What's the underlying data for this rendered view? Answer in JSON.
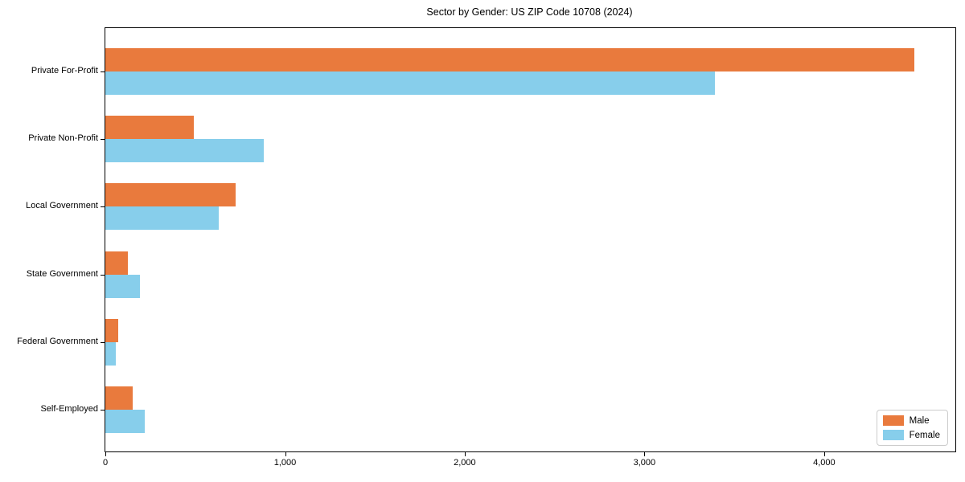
{
  "chart_data": {
    "type": "bar",
    "orientation": "horizontal",
    "title": "Sector by Gender: US ZIP Code 10708 (2024)",
    "categories": [
      "Private For-Profit",
      "Private Non-Profit",
      "Local Government",
      "State Government",
      "Federal Government",
      "Self-Employed"
    ],
    "series": [
      {
        "name": "Male",
        "color": "#e97a3d",
        "values": [
          4500,
          490,
          725,
          125,
          70,
          150
        ]
      },
      {
        "name": "Female",
        "color": "#87ceeb",
        "values": [
          3390,
          880,
          630,
          190,
          60,
          220
        ]
      }
    ],
    "xlabel": "",
    "ylabel": "",
    "xlim": [
      0,
      4730
    ],
    "x_ticks": [
      {
        "value": 0,
        "label": "0"
      },
      {
        "value": 1000,
        "label": "1,000"
      },
      {
        "value": 2000,
        "label": "2,000"
      },
      {
        "value": 3000,
        "label": "3,000"
      },
      {
        "value": 4000,
        "label": "4,000"
      }
    ],
    "grid": false,
    "legend_position": "lower right",
    "frame_color": "#000000",
    "background_color": "#ffffff"
  }
}
